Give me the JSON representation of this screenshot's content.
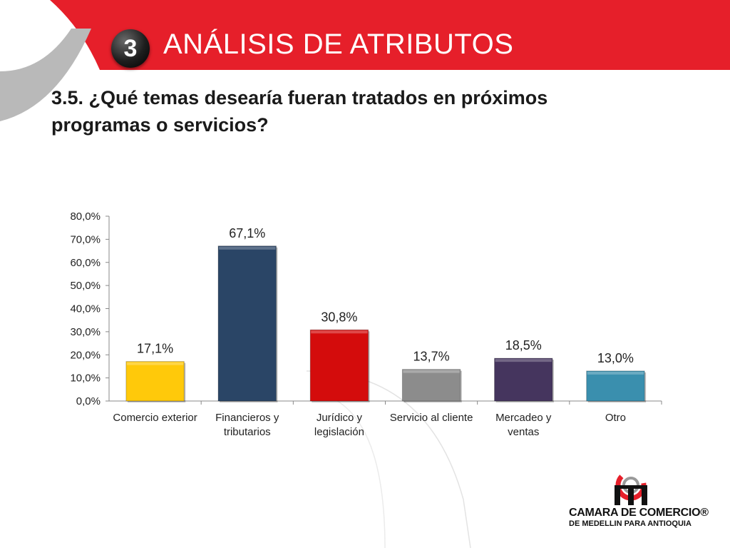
{
  "header": {
    "section_number": "3",
    "title": "ANÁLISIS DE ATRIBUTOS"
  },
  "question": "3.5. ¿Qué temas desearía fueran tratados en próximos programas o servicios?",
  "logo": {
    "line1": "CAMARA DE COMERCIO®",
    "line2": "DE MEDELLIN PARA ANTIOQUIA"
  },
  "colors": {
    "header_red": "#e61f2a",
    "arc_gray": "#b9b9b9"
  },
  "chart_data": {
    "type": "bar",
    "categories": [
      [
        "Comercio exterior"
      ],
      [
        "Financieros y",
        "tributarios"
      ],
      [
        "Jurídico y",
        "legislación"
      ],
      [
        "Servicio al cliente"
      ],
      [
        "Mercadeo y",
        "ventas"
      ],
      [
        "Otro"
      ]
    ],
    "values": [
      17.1,
      67.1,
      30.8,
      13.7,
      18.5,
      13.0
    ],
    "data_labels": [
      "17,1%",
      "67,1%",
      "30,8%",
      "13,7%",
      "18,5%",
      "13,0%"
    ],
    "bar_colors": [
      "#ffc90a",
      "#2a4566",
      "#d40c0c",
      "#8c8c8c",
      "#45355e",
      "#3a8fae"
    ],
    "ylim": [
      0,
      80
    ],
    "yticks": [
      "0,0%",
      "10,0%",
      "20,0%",
      "30,0%",
      "40,0%",
      "50,0%",
      "60,0%",
      "70,0%",
      "80,0%"
    ],
    "grid": false,
    "legend": "none"
  }
}
